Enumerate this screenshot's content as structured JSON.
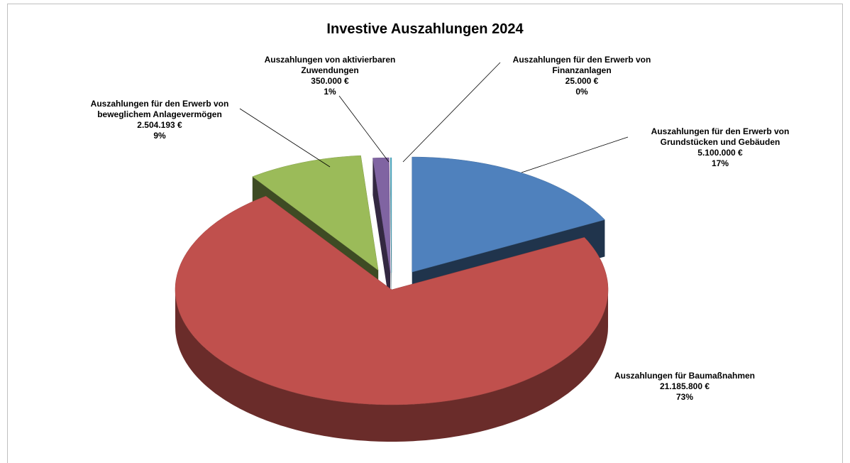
{
  "chart_data": {
    "type": "pie3d",
    "title": "Investive Auszahlungen 2024",
    "categories": [
      "Auszahlungen für den Erwerb von Grundstücken und Gebäuden",
      "Auszahlungen für Baumaßnahmen",
      "Auszahlungen für den Erwerb von beweglichem Anlagevermögen",
      "Auszahlungen von aktivierbaren Zuwendungen",
      "Auszahlungen für den Erwerb von Finanzanlagen"
    ],
    "values": [
      5100000,
      21185800,
      2504193,
      350000,
      25000
    ],
    "value_labels": [
      "5.100.000 €",
      "21.185.800 €",
      "2.504.193 €",
      "350.000 €",
      "25.000 €"
    ],
    "percent_labels": [
      "17%",
      "73%",
      "9%",
      "1%",
      "0%"
    ],
    "colors": [
      "#4f81bd",
      "#c0504d",
      "#9bbb59",
      "#8064a2",
      "#4bacc6"
    ]
  }
}
